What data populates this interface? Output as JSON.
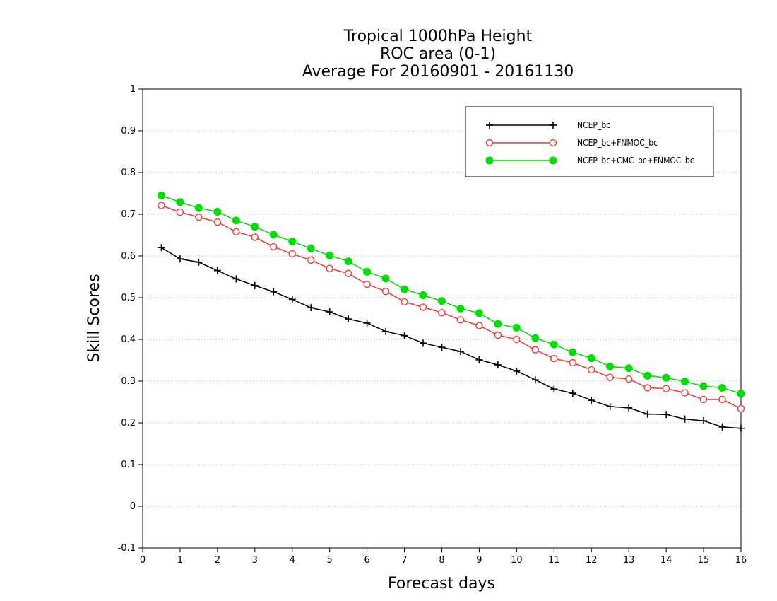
{
  "chart_data": {
    "type": "line",
    "title": [
      "Tropical 1000hPa Height",
      "ROC area (0-1)",
      "Average For 20160901 - 20161130"
    ],
    "xlabel": "Forecast days",
    "ylabel": "Skill Scores",
    "xlim": [
      0,
      16
    ],
    "ylim": [
      -0.1,
      1
    ],
    "xticks": [
      0,
      1,
      2,
      3,
      4,
      5,
      6,
      7,
      8,
      9,
      10,
      11,
      12,
      13,
      14,
      15,
      16
    ],
    "yticks": [
      -0.1,
      0,
      0.1,
      0.2,
      0.3,
      0.4,
      0.5,
      0.6,
      0.7,
      0.8,
      0.9,
      1
    ],
    "ytick_labels": [
      "-0.1",
      "0",
      "0.1",
      "0.2",
      "0.3",
      "0.4",
      "0.5",
      "0.6",
      "0.7",
      "0.8",
      "0.9",
      "1"
    ],
    "grid": "horizontal dotted",
    "legend_position": "top-right",
    "x": [
      0.5,
      1,
      1.5,
      2,
      2.5,
      3,
      3.5,
      4,
      4.5,
      5,
      5.5,
      6,
      6.5,
      7,
      7.5,
      8,
      8.5,
      9,
      9.5,
      10,
      10.5,
      11,
      11.5,
      12,
      12.5,
      13,
      13.5,
      14,
      14.5,
      15,
      15.5,
      16
    ],
    "series": [
      {
        "name": "NCEP_bc",
        "color": "#000000",
        "marker": "plus",
        "values": [
          0.62,
          0.593,
          0.585,
          0.565,
          0.545,
          0.529,
          0.514,
          0.496,
          0.476,
          0.466,
          0.449,
          0.439,
          0.419,
          0.409,
          0.391,
          0.381,
          0.371,
          0.351,
          0.339,
          0.324,
          0.303,
          0.281,
          0.271,
          0.254,
          0.239,
          0.236,
          0.221,
          0.22,
          0.209,
          0.205,
          0.19,
          0.187
        ]
      },
      {
        "name": "NCEP_bc+FNMOC_bc",
        "color": "#ff3333",
        "marker": "open-circle",
        "values": [
          0.721,
          0.705,
          0.693,
          0.681,
          0.658,
          0.645,
          0.622,
          0.605,
          0.59,
          0.57,
          0.558,
          0.532,
          0.515,
          0.49,
          0.477,
          0.464,
          0.447,
          0.433,
          0.41,
          0.4,
          0.375,
          0.354,
          0.344,
          0.327,
          0.309,
          0.305,
          0.284,
          0.282,
          0.272,
          0.256,
          0.256,
          0.234
        ]
      },
      {
        "name": "NCEP_bc+CMC_bc+FNMOC_bc",
        "color": "#00dd00",
        "marker": "filled-circle",
        "values": [
          0.745,
          0.729,
          0.715,
          0.706,
          0.685,
          0.67,
          0.651,
          0.635,
          0.618,
          0.601,
          0.587,
          0.562,
          0.546,
          0.52,
          0.506,
          0.492,
          0.474,
          0.463,
          0.437,
          0.428,
          0.403,
          0.388,
          0.369,
          0.355,
          0.335,
          0.331,
          0.313,
          0.308,
          0.299,
          0.288,
          0.284,
          0.27
        ]
      }
    ]
  }
}
